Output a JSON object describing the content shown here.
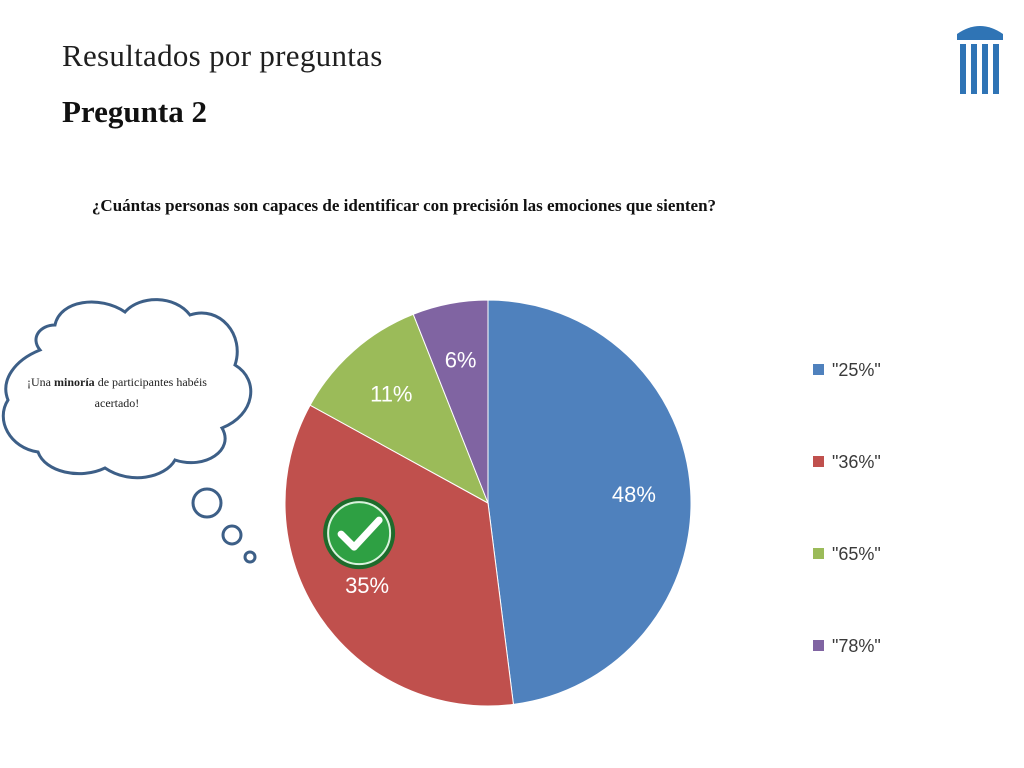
{
  "header": {
    "title": "Resultados por preguntas",
    "subtitle": "Pregunta 2"
  },
  "question": "¿Cuántas personas son capaces de identificar con precisión las emociones que sienten?",
  "thought_bubble": {
    "before": "¡Una ",
    "bold": "minoría",
    "after": " de participantes habéis acertado!"
  },
  "correct_marker": {
    "icon": "check-circle-icon",
    "category": "\"36%\""
  },
  "logo_icon": "columns-logo-icon",
  "chart_data": {
    "type": "pie",
    "categories": [
      "\"25%\"",
      "\"36%\"",
      "\"65%\"",
      "\"78%\""
    ],
    "values": [
      48,
      35,
      11,
      6
    ],
    "labels": [
      "48%",
      "35%",
      "11%",
      "6%"
    ],
    "colors": [
      "#4f81bd",
      "#c0504d",
      "#9bbb59",
      "#8064a2"
    ],
    "legend": "right",
    "start_angle": "top, clockwise"
  }
}
